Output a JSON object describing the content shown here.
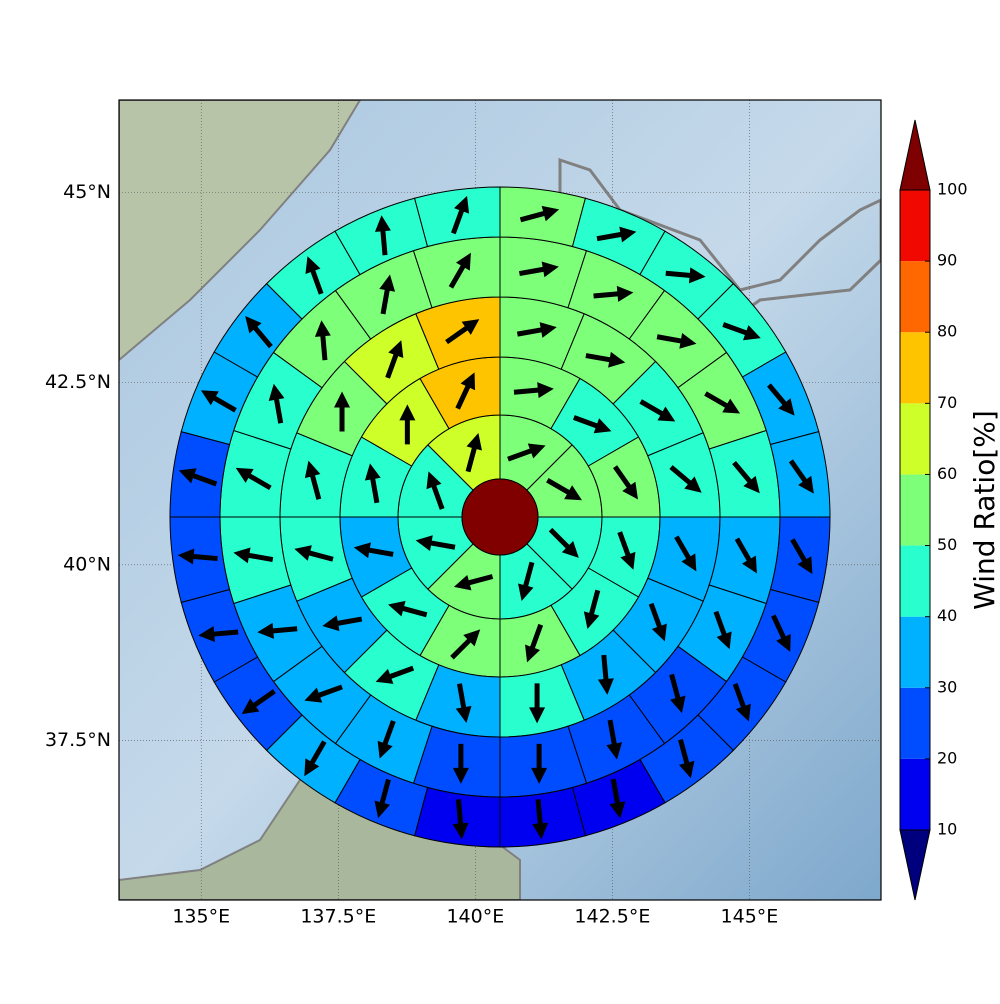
{
  "chart_data": {
    "type": "polar",
    "xlim": [
      133.5,
      147.4
    ],
    "ylim": [
      35.16,
      46.18
    ],
    "xticks": [
      {
        "value": 135,
        "label": "135°E"
      },
      {
        "value": 137.5,
        "label": "137.5°E"
      },
      {
        "value": 140,
        "label": "140°E"
      },
      {
        "value": 142.5,
        "label": "142.5°E"
      },
      {
        "value": 145,
        "label": "145°E"
      }
    ],
    "yticks": [
      {
        "value": 45,
        "label": "45°N"
      },
      {
        "value": 42.5,
        "label": "42.5°N"
      },
      {
        "value": 40,
        "label": "40°N"
      },
      {
        "value": 37.5,
        "label": "37.5°N"
      }
    ],
    "grid": true,
    "rings": [
      {
        "values": [
          55,
          55,
          45,
          45,
          55,
          45,
          45,
          65
        ],
        "directions": [
          70,
          120,
          135,
          195,
          255,
          280,
          340,
          15
        ]
      },
      {
        "values": [
          55,
          45,
          55,
          45,
          45,
          55,
          55,
          45,
          35,
          45,
          65,
          75
        ],
        "directions": [
          85,
          110,
          145,
          160,
          195,
          200,
          45,
          285,
          280,
          350,
          0,
          25
        ]
      },
      {
        "values": [
          55,
          55,
          45,
          45,
          35,
          35,
          35,
          45,
          35,
          45,
          35,
          45,
          45,
          55,
          65,
          75
        ],
        "directions": [
          80,
          100,
          120,
          130,
          150,
          160,
          175,
          180,
          170,
          250,
          260,
          285,
          345,
          0,
          20,
          55
        ]
      },
      {
        "values": [
          55,
          55,
          55,
          55,
          45,
          35,
          35,
          25,
          25,
          25,
          25,
          35,
          35,
          35,
          45,
          45,
          45,
          55,
          55,
          55
        ],
        "directions": [
          80,
          85,
          100,
          120,
          140,
          150,
          160,
          165,
          170,
          180,
          180,
          200,
          250,
          265,
          280,
          300,
          350,
          355,
          10,
          30
        ]
      },
      {
        "values": [
          55,
          45,
          45,
          45,
          35,
          35,
          25,
          25,
          25,
          25,
          15,
          15,
          15,
          25,
          35,
          25,
          25,
          25,
          25,
          35,
          35,
          45,
          45,
          45
        ],
        "directions": [
          75,
          80,
          95,
          110,
          140,
          145,
          150,
          155,
          160,
          165,
          170,
          175,
          175,
          195,
          210,
          235,
          265,
          275,
          290,
          300,
          320,
          340,
          355,
          20
        ]
      }
    ],
    "arrow_color": "#000000",
    "colorbar": {
      "label": "Wind Ratio[%]",
      "ticks": [
        10,
        20,
        30,
        40,
        50,
        60,
        70,
        80,
        90,
        100
      ],
      "colors": [
        "#00007f",
        "#0000f1",
        "#004dff",
        "#00b1ff",
        "#29ffce",
        "#7dff7a",
        "#ceff29",
        "#ffc400",
        "#ff6800",
        "#f10800",
        "#7f0000"
      ]
    }
  }
}
